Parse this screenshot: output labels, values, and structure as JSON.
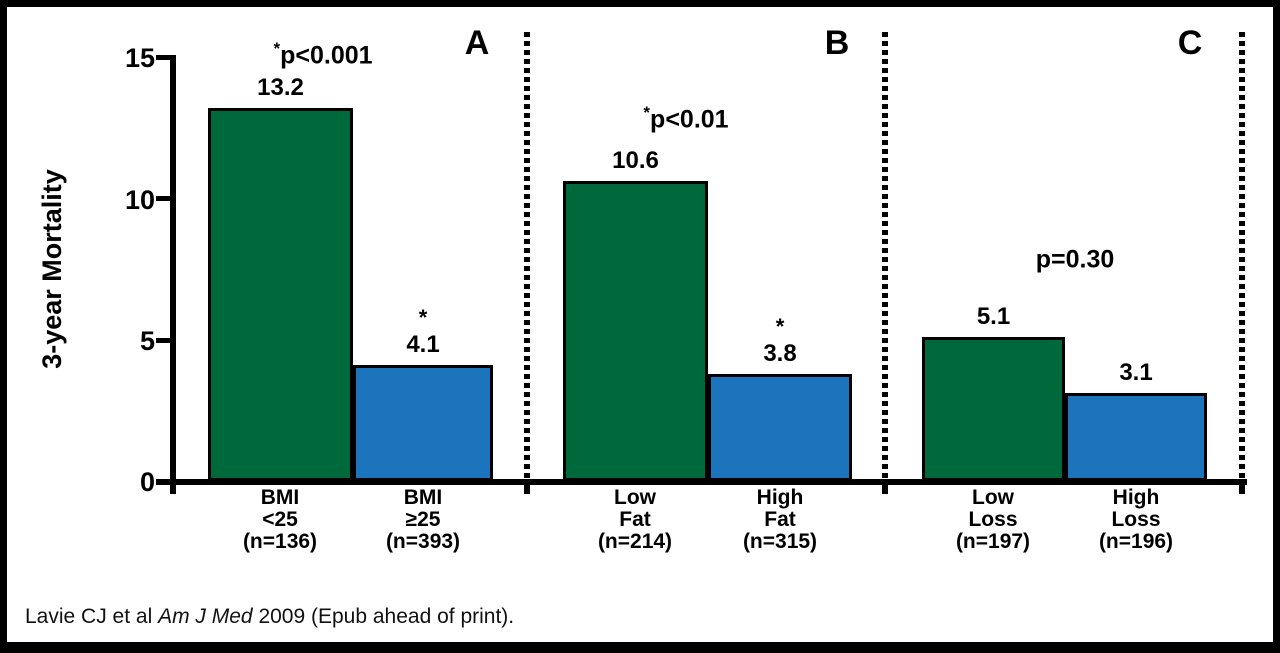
{
  "figure": {
    "background": "#ffffff",
    "border_color": "#000000"
  },
  "y_axis": {
    "label": "3-year Mortality",
    "tick_labels": [
      "15",
      "10",
      "5",
      "0"
    ]
  },
  "citation": {
    "prefix": "Lavie CJ et al ",
    "journal": "Am J Med",
    "suffix": " 2009 (Epub ahead of print)."
  },
  "colors": {
    "green_bar": "#00693C",
    "blue_bar": "#1C75BC",
    "axis": "#000000"
  },
  "chart_data": {
    "type": "bar",
    "title": "",
    "xlabel": "",
    "ylabel": "3-year Mortality",
    "ylim": [
      0,
      15
    ],
    "yticks": [
      0,
      5,
      10,
      15
    ],
    "grid": false,
    "legend": "none",
    "panels": [
      {
        "label": "A",
        "p_star": "*",
        "p_text": "p<0.001",
        "bars": [
          {
            "category_lines": [
              "BMI",
              "<25",
              "(n=136)"
            ],
            "value": 13.2,
            "value_label": "13.2",
            "significance": "",
            "color": "#00693C"
          },
          {
            "category_lines": [
              "BMI",
              "≥25",
              "(n=393)"
            ],
            "value": 4.1,
            "value_label": "4.1",
            "significance": "*",
            "color": "#1C75BC"
          }
        ]
      },
      {
        "label": "B",
        "p_star": "*",
        "p_text": "p<0.01",
        "bars": [
          {
            "category_lines": [
              "Low",
              "Fat",
              "(n=214)"
            ],
            "value": 10.6,
            "value_label": "10.6",
            "significance": "",
            "color": "#00693C"
          },
          {
            "category_lines": [
              "High",
              "Fat",
              "(n=315)"
            ],
            "value": 3.8,
            "value_label": "3.8",
            "significance": "*",
            "color": "#1C75BC"
          }
        ]
      },
      {
        "label": "C",
        "p_star": "",
        "p_text": "p=0.30",
        "bars": [
          {
            "category_lines": [
              "Low",
              "Loss",
              "(n=197)"
            ],
            "value": 5.1,
            "value_label": "5.1",
            "significance": "",
            "color": "#00693C"
          },
          {
            "category_lines": [
              "High",
              "Loss",
              "(n=196)"
            ],
            "value": 3.1,
            "value_label": "3.1",
            "significance": "",
            "color": "#1C75BC"
          }
        ]
      }
    ]
  }
}
